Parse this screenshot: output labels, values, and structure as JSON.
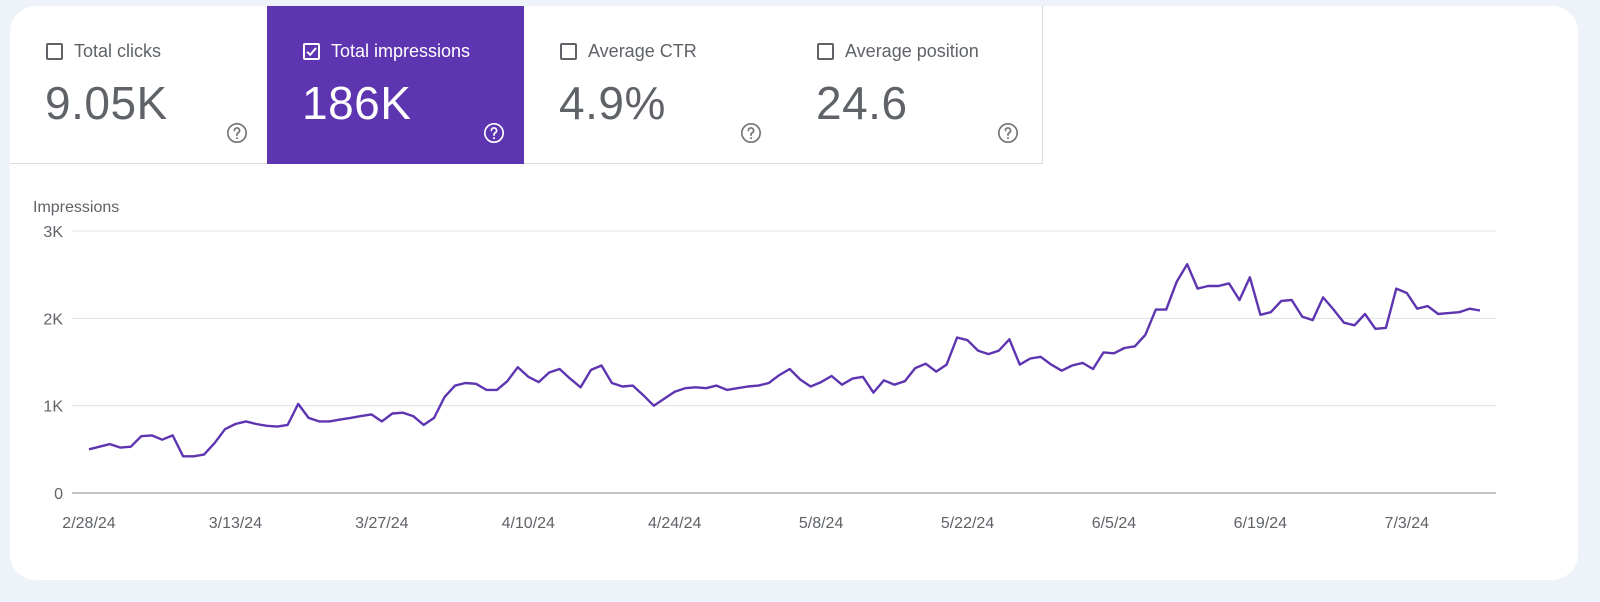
{
  "metrics": [
    {
      "label": "Total clicks",
      "value": "9.05K",
      "checked": false
    },
    {
      "label": "Total impressions",
      "value": "186K",
      "checked": true
    },
    {
      "label": "Average CTR",
      "value": "4.9%",
      "checked": false
    },
    {
      "label": "Average position",
      "value": "24.6",
      "checked": false
    }
  ],
  "colors": {
    "accent": "#5e35b1",
    "line": "#5e35b1",
    "grid": "#e0e0e0",
    "axis": "#9e9e9e",
    "text": "#5f6368",
    "page_bg": "#eef2f9"
  },
  "icons": {
    "checkbox": "checkbox-icon",
    "help": "help-circle-icon"
  },
  "chart_data": {
    "type": "line",
    "ylabel": "Impressions",
    "ylim": [
      0,
      3000
    ],
    "y_ticks": [
      0,
      1000,
      2000,
      3000
    ],
    "y_tick_labels": [
      "0",
      "1K",
      "2K",
      "3K"
    ],
    "x_tick_labels": [
      "2/28/24",
      "3/13/24",
      "3/27/24",
      "4/10/24",
      "4/24/24",
      "5/8/24",
      "5/22/24",
      "6/5/24",
      "6/19/24",
      "7/3/24"
    ],
    "grid": true,
    "series": [
      {
        "values": [
          500,
          530,
          560,
          520,
          530,
          650,
          660,
          610,
          660,
          420,
          420,
          440,
          570,
          730,
          790,
          820,
          790,
          770,
          760,
          780,
          1020,
          860,
          820,
          820,
          840,
          860,
          880,
          900,
          820,
          910,
          920,
          880,
          780,
          860,
          1100,
          1230,
          1260,
          1250,
          1180,
          1180,
          1280,
          1440,
          1330,
          1270,
          1380,
          1420,
          1310,
          1210,
          1410,
          1460,
          1260,
          1220,
          1230,
          1120,
          1000,
          1080,
          1160,
          1200,
          1210,
          1200,
          1230,
          1180,
          1200,
          1220,
          1230,
          1260,
          1350,
          1420,
          1300,
          1220,
          1270,
          1340,
          1240,
          1310,
          1330,
          1150,
          1290,
          1240,
          1280,
          1430,
          1480,
          1390,
          1470,
          1780,
          1750,
          1630,
          1590,
          1630,
          1760,
          1470,
          1540,
          1560,
          1470,
          1400,
          1460,
          1490,
          1420,
          1610,
          1600,
          1660,
          1680,
          1810,
          2100,
          2100,
          2420,
          2620,
          2340,
          2370,
          2370,
          2400,
          2210,
          2470,
          2040,
          2070,
          2200,
          2210,
          2020,
          1980,
          2240,
          2100,
          1950,
          1920,
          2050,
          1880,
          1890,
          2340,
          2290,
          2110,
          2140,
          2050,
          2060,
          2070,
          2110,
          2090
        ]
      }
    ]
  }
}
